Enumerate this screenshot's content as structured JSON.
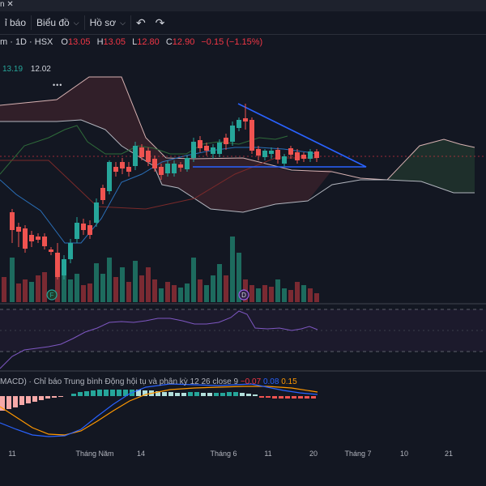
{
  "window": {
    "tab_fragment": "n",
    "close_glyph": "✕"
  },
  "toolbar": {
    "indicator_label": "ỉ báo",
    "chart_label": "Biểu đồ",
    "profile_label": "Hồ sơ",
    "undo_icon": "↶",
    "redo_icon": "↷"
  },
  "legend": {
    "symbol": "m · 1D · HSX",
    "open_label": "O",
    "open": "13.05",
    "high_label": "H",
    "high": "13.05",
    "low_label": "L",
    "low": "12.80",
    "close_label": "C",
    "close": "12.90",
    "change": "−0.15 (−1.15%)",
    "down_color": "#f23645"
  },
  "ichimoku": {
    "val1": "13.19",
    "val2": "12.02",
    "more": "•••"
  },
  "markers": {
    "f": "F",
    "d": "D"
  },
  "macd": {
    "label": "MACD) · Chỉ báo Trung bình Động hội tụ và phân kỳ 12 26 close 9",
    "hist": "−0.07",
    "macd": "0.08",
    "signal": "0.15",
    "hist_color": "#f23645",
    "macd_color": "#2962ff",
    "signal_color": "#ff9800"
  },
  "time_axis": [
    "11",
    "Tháng Năm",
    "14",
    "Tháng 6",
    "11",
    "20",
    "Tháng 7",
    "10",
    "21"
  ],
  "colors": {
    "up": "#26a69a",
    "down": "#ef5350",
    "background": "#131722",
    "trendline": "#2962ff"
  }
}
